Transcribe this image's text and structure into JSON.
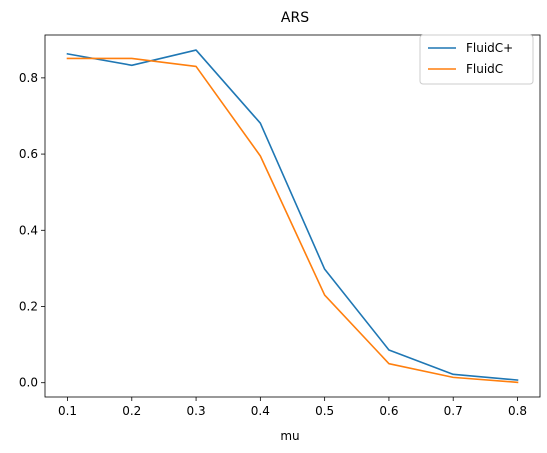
{
  "chart_data": {
    "type": "line",
    "title": "ARS",
    "xlabel": "mu",
    "ylabel": "",
    "x": [
      0.1,
      0.2,
      0.3,
      0.4,
      0.5,
      0.6,
      0.7,
      0.8
    ],
    "xlim": [
      0.065,
      0.835
    ],
    "ylim": [
      -0.0375,
      0.9125
    ],
    "xticks": [
      "0.1",
      "0.2",
      "0.3",
      "0.4",
      "0.5",
      "0.6",
      "0.7",
      "0.8"
    ],
    "yticks": [
      "0.0",
      "0.2",
      "0.4",
      "0.6",
      "0.8"
    ],
    "ytick_values": [
      0.0,
      0.2,
      0.4,
      0.6,
      0.8
    ],
    "grid": false,
    "legend_position": "top-right",
    "series": [
      {
        "name": "FluidC+",
        "color": "#1f77b4",
        "values": [
          0.863,
          0.833,
          0.873,
          0.681,
          0.298,
          0.086,
          0.022,
          0.007
        ]
      },
      {
        "name": "FluidC",
        "color": "#ff7f0e",
        "values": [
          0.851,
          0.851,
          0.83,
          0.595,
          0.23,
          0.05,
          0.014,
          0.001
        ]
      }
    ]
  }
}
